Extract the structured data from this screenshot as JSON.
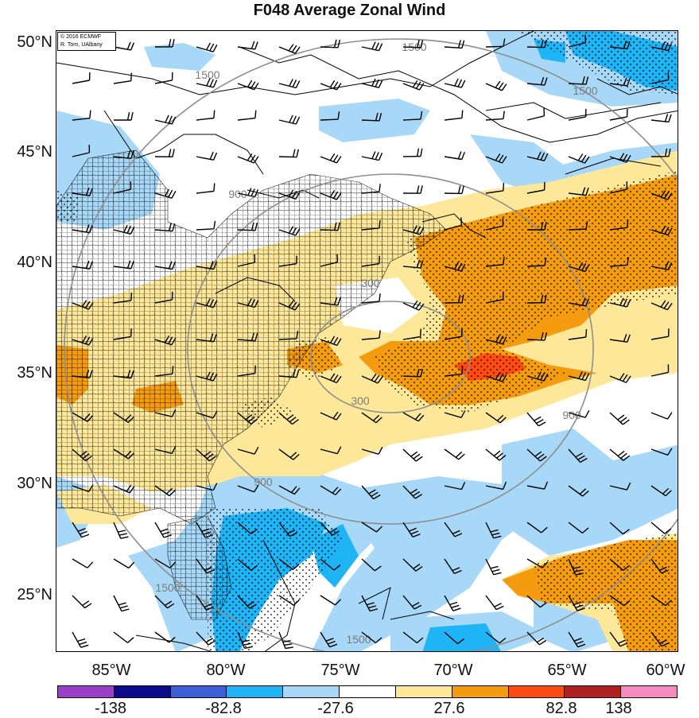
{
  "title": "F048 Average Zonal Wind",
  "credit": {
    "line1": "© 2016 ECMWF",
    "line2": "R. Torn, UAlbany"
  },
  "lat_labels": [
    "50°N",
    "45°N",
    "40°N",
    "35°N",
    "30°N",
    "25°N"
  ],
  "lon_labels": [
    "85°W",
    "80°W",
    "75°W",
    "70°W",
    "65°W",
    "60°W"
  ],
  "range_ring_labels": [
    "300",
    "300",
    "900",
    "900",
    "900",
    "1500",
    "1500",
    "1500",
    "1500",
    "1500"
  ],
  "colorbar": {
    "colors": [
      "#9b3fc9",
      "#0a0a8a",
      "#3a5fd6",
      "#1fb4f5",
      "#a8d8f8",
      "#ffffff",
      "#fde89a",
      "#f59b0f",
      "#ff4a12",
      "#b0201e",
      "#f58ac0"
    ],
    "labels": [
      "-138",
      "-82.8",
      "-27.6",
      "27.6",
      "82.8",
      "138"
    ]
  },
  "shading_colors": {
    "light_blue": "#a8d8f8",
    "blue": "#1fb4f5",
    "light_yellow": "#fde89a",
    "orange": "#f59b0f",
    "red": "#ff4a12"
  }
}
